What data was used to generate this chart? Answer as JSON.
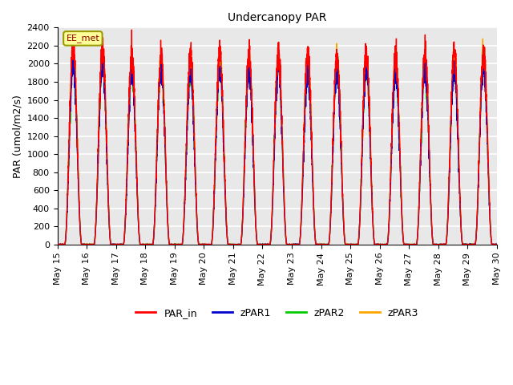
{
  "title": "Undercanopy PAR",
  "ylabel": "PAR (umol/m2/s)",
  "ylim": [
    0,
    2400
  ],
  "yticks": [
    0,
    200,
    400,
    600,
    800,
    1000,
    1200,
    1400,
    1600,
    1800,
    2000,
    2200,
    2400
  ],
  "legend_label": "EE_met",
  "series": {
    "PAR_in": {
      "color": "#FF0000",
      "label": "PAR_in",
      "lw": 1.0
    },
    "zPAR1": {
      "color": "#0000CC",
      "label": "zPAR1",
      "lw": 1.0
    },
    "zPAR2": {
      "color": "#00CC00",
      "label": "zPAR2",
      "lw": 1.0
    },
    "zPAR3": {
      "color": "#FFA500",
      "label": "zPAR3",
      "lw": 1.0
    }
  },
  "n_days": 15,
  "points_per_day": 288,
  "start_day": 15,
  "plot_bg_color": "#e8e8e8",
  "grid_color": "#ffffff",
  "grid_alpha": 1.0,
  "tick_fontsize": 8,
  "label_fontsize": 9,
  "title_fontsize": 10
}
